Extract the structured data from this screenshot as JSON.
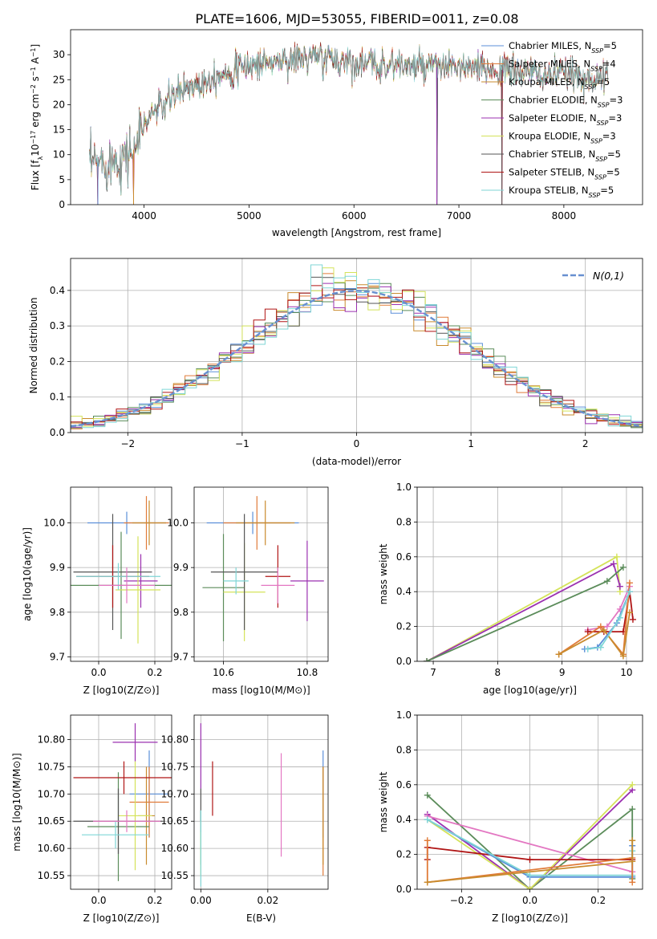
{
  "page": {
    "title": "PLATE=1606, MJD=53055, FIBERID=0011, z=0.08"
  },
  "colors": {
    "c1": "#5b8fd9",
    "c2": "#e07b39",
    "c3": "#c98b2e",
    "c4": "#5b8c5a",
    "c5": "#9b30b0",
    "c6": "#d4e35a",
    "c7": "#555555",
    "c8": "#b01515",
    "c9": "#7fd6d6",
    "c10": "#e377c2",
    "gauss": "#6890d0"
  },
  "chart_data": [
    {
      "id": "spectrum",
      "type": "line",
      "xlabel": "wavelength [Angstrom, rest frame]",
      "ylabel": "Flux [f_λ 10^-17 erg cm^-2 s^-1 A^-1]",
      "xlim": [
        3300,
        8750
      ],
      "ylim": [
        0,
        35
      ],
      "xticks": [
        4000,
        5000,
        6000,
        7000,
        8000
      ],
      "yticks": [
        0,
        5,
        10,
        15,
        20,
        25,
        30
      ],
      "legend_position": "upper-right",
      "legend": [
        {
          "label": "Chabrier MILES, N",
          "sub": "SSP",
          "suffix": "=5",
          "color": "#5b8fd9"
        },
        {
          "label": "Salpeter MILES, N",
          "sub": "SSP",
          "suffix": "=4",
          "color": "#e07b39"
        },
        {
          "label": "Kroupa MILES, N",
          "sub": "SSP",
          "suffix": "=5",
          "color": "#c98b2e"
        },
        {
          "label": "Chabrier ELODIE, N",
          "sub": "SSP",
          "suffix": "=3",
          "color": "#5b8c5a"
        },
        {
          "label": "Salpeter ELODIE, N",
          "sub": "SSP",
          "suffix": "=3",
          "color": "#9b30b0"
        },
        {
          "label": "Kroupa ELODIE, N",
          "sub": "SSP",
          "suffix": "=3",
          "color": "#d4e35a"
        },
        {
          "label": "Chabrier STELIB, N",
          "sub": "SSP",
          "suffix": "=5",
          "color": "#555555"
        },
        {
          "label": "Salpeter STELIB, N",
          "sub": "SSP",
          "suffix": "=5",
          "color": "#b01515"
        },
        {
          "label": "Kroupa STELIB, N",
          "sub": "SSP",
          "suffix": "=5",
          "color": "#7fd6d6"
        }
      ],
      "continuum": {
        "x": [
          3500,
          3600,
          3700,
          3800,
          3900,
          4000,
          4100,
          4200,
          4300,
          4400,
          4500,
          4600,
          4700,
          4800,
          4900,
          5000,
          5200,
          5400,
          5600,
          5800,
          6000,
          6200,
          6400,
          6600,
          6800,
          7000,
          7200,
          7400,
          7600,
          7800,
          8000,
          8200,
          8400
        ],
        "y": [
          8,
          8.5,
          9,
          9.5,
          11,
          16,
          19,
          20,
          22,
          23.5,
          24,
          25,
          26,
          26.5,
          27,
          28,
          28.5,
          29,
          29.5,
          29,
          28.5,
          28,
          28,
          27.5,
          27.5,
          27.5,
          27,
          27,
          26.5,
          26,
          26,
          25.5,
          25
        ]
      },
      "drops": [
        {
          "x": 3560,
          "to": 0
        },
        {
          "x": 3900,
          "to": 0
        },
        {
          "x": 6790,
          "to": 0
        },
        {
          "x": 7410,
          "to": 0
        }
      ]
    },
    {
      "id": "residuals",
      "type": "histogram",
      "xlabel": "(data-model)/error",
      "ylabel": "Normed distribution",
      "xlim": [
        -2.5,
        2.5
      ],
      "ylim": [
        0,
        0.49
      ],
      "xticks": [
        -2,
        -1,
        0,
        1,
        2
      ],
      "yticks": [
        0.0,
        0.1,
        0.2,
        0.3,
        0.4
      ],
      "legend_position": "upper-right",
      "legend_label": "N(0,1)",
      "bin_width": 0.1,
      "series_count": 9
    },
    {
      "id": "age_vs_Z",
      "type": "errorbar",
      "xlabel": "Z [log10(Z/Z⊙)]",
      "ylabel": "age [log10(age/yr)]",
      "xlim": [
        -0.1,
        0.26
      ],
      "ylim": [
        9.69,
        10.08
      ],
      "xticks": [
        0.0,
        0.2
      ],
      "yticks": [
        9.7,
        9.8,
        9.9,
        10.0
      ],
      "points": [
        {
          "x": 0.1,
          "y": 10.0,
          "xerr": 0.14,
          "yerr": 0.025,
          "color": "#5b8fd9"
        },
        {
          "x": 0.17,
          "y": 10.0,
          "xerr": 0.08,
          "yerr": 0.06,
          "color": "#e07b39"
        },
        {
          "x": 0.18,
          "y": 10.0,
          "xerr": 0.06,
          "yerr": 0.05,
          "color": "#c98b2e"
        },
        {
          "x": 0.08,
          "y": 9.86,
          "xerr": 0.19,
          "yerr": 0.12,
          "color": "#5b8c5a"
        },
        {
          "x": 0.15,
          "y": 9.87,
          "xerr": 0.06,
          "yerr": 0.06,
          "color": "#9b30b0"
        },
        {
          "x": 0.14,
          "y": 9.85,
          "xerr": 0.08,
          "yerr": 0.12,
          "color": "#d4e35a"
        },
        {
          "x": 0.05,
          "y": 9.89,
          "xerr": 0.14,
          "yerr": 0.13,
          "color": "#555555"
        },
        {
          "x": 0.05,
          "y": 9.88,
          "xerr": 0.13,
          "yerr": 0.07,
          "color": "#b01515"
        },
        {
          "x": 0.07,
          "y": 9.88,
          "xerr": 0.15,
          "yerr": 0.03,
          "color": "#7fd6d6"
        },
        {
          "x": 0.1,
          "y": 9.86,
          "xerr": 0.1,
          "yerr": 0.04,
          "color": "#e377c2"
        }
      ]
    },
    {
      "id": "age_vs_mass",
      "type": "errorbar",
      "xlabel": "mass [log10(M/M⊙)]",
      "ylabel": "",
      "xlim": [
        10.53,
        10.85
      ],
      "ylim": [
        9.69,
        10.08
      ],
      "xticks": [
        10.6,
        10.8
      ],
      "yticks": [
        9.7,
        9.8,
        9.9,
        10.0
      ],
      "points": [
        {
          "x": 10.67,
          "y": 10.0,
          "xerr": 0.11,
          "yerr": 0.025,
          "color": "#5b8fd9"
        },
        {
          "x": 10.68,
          "y": 10.0,
          "xerr": 0.08,
          "yerr": 0.06,
          "color": "#e07b39"
        },
        {
          "x": 10.7,
          "y": 10.0,
          "xerr": 0.07,
          "yerr": 0.05,
          "color": "#c98b2e"
        },
        {
          "x": 10.6,
          "y": 9.855,
          "xerr": 0.05,
          "yerr": 0.12,
          "color": "#5b8c5a"
        },
        {
          "x": 10.8,
          "y": 9.87,
          "xerr": 0.04,
          "yerr": 0.09,
          "color": "#9b30b0"
        },
        {
          "x": 10.65,
          "y": 9.845,
          "xerr": 0.05,
          "yerr": 0.11,
          "color": "#d4e35a"
        },
        {
          "x": 10.65,
          "y": 9.89,
          "xerr": 0.08,
          "yerr": 0.13,
          "color": "#555555"
        },
        {
          "x": 10.73,
          "y": 9.88,
          "xerr": 0.03,
          "yerr": 0.07,
          "color": "#b01515"
        },
        {
          "x": 10.63,
          "y": 9.87,
          "xerr": 0.03,
          "yerr": 0.03,
          "color": "#7fd6d6"
        },
        {
          "x": 10.73,
          "y": 9.86,
          "xerr": 0.04,
          "yerr": 0.04,
          "color": "#e377c2"
        }
      ]
    },
    {
      "id": "mass_weight_vs_age",
      "type": "line",
      "xlabel": "age [log10(age/yr)]",
      "ylabel": "mass weight",
      "xlim": [
        6.75,
        10.25
      ],
      "ylim": [
        0,
        1.0
      ],
      "xticks": [
        7,
        8,
        9,
        10
      ],
      "yticks": [
        0.0,
        0.2,
        0.4,
        0.6,
        0.8,
        1.0
      ],
      "series": [
        {
          "color": "#d4e35a",
          "x": [
            6.9,
            9.85,
            9.9
          ],
          "y": [
            0.0,
            0.6,
            0.4
          ]
        },
        {
          "color": "#9b30b0",
          "x": [
            6.9,
            9.8,
            9.9
          ],
          "y": [
            0.0,
            0.56,
            0.43
          ]
        },
        {
          "color": "#5b8c5a",
          "x": [
            6.9,
            9.7,
            9.95
          ],
          "y": [
            0.0,
            0.46,
            0.54
          ]
        },
        {
          "color": "#e377c2",
          "x": [
            9.4,
            9.7,
            9.9,
            10.05
          ],
          "y": [
            0.18,
            0.2,
            0.3,
            0.43
          ]
        },
        {
          "color": "#b01515",
          "x": [
            9.4,
            9.65,
            9.95,
            10.05,
            10.1
          ],
          "y": [
            0.17,
            0.17,
            0.17,
            0.4,
            0.24
          ]
        },
        {
          "color": "#e07b39",
          "x": [
            8.95,
            9.6,
            9.95,
            10.05
          ],
          "y": [
            0.04,
            0.2,
            0.04,
            0.45
          ]
        },
        {
          "color": "#c98b2e",
          "x": [
            8.95,
            9.65,
            9.95,
            10.05
          ],
          "y": [
            0.04,
            0.18,
            0.03,
            0.28
          ]
        },
        {
          "color": "#5b8fd9",
          "x": [
            9.35,
            9.55,
            9.85,
            10.05
          ],
          "y": [
            0.07,
            0.08,
            0.22,
            0.4
          ]
        },
        {
          "color": "#7fd6d6",
          "x": [
            9.4,
            9.6,
            9.9,
            10.05
          ],
          "y": [
            0.07,
            0.08,
            0.25,
            0.4
          ]
        }
      ]
    },
    {
      "id": "mass_vs_Z",
      "type": "errorbar",
      "xlabel": "Z [log10(Z/Z⊙)]",
      "ylabel": "mass [log10(M/M⊙)]",
      "xlim": [
        -0.1,
        0.26
      ],
      "ylim": [
        10.525,
        10.845
      ],
      "xticks": [
        0.0,
        0.2
      ],
      "yticks": [
        10.55,
        10.6,
        10.65,
        10.7,
        10.75,
        10.8
      ],
      "points": [
        {
          "x": 0.18,
          "y": 10.7,
          "xerr": 0.07,
          "yerr": 0.08,
          "color": "#5b8fd9"
        },
        {
          "x": 0.18,
          "y": 10.685,
          "xerr": 0.07,
          "yerr": 0.065,
          "color": "#e07b39"
        },
        {
          "x": 0.17,
          "y": 10.66,
          "xerr": 0.03,
          "yerr": 0.09,
          "color": "#c98b2e"
        },
        {
          "x": 0.07,
          "y": 10.64,
          "xerr": 0.11,
          "yerr": 0.1,
          "color": "#5b8c5a"
        },
        {
          "x": 0.13,
          "y": 10.795,
          "xerr": 0.08,
          "yerr": 0.035,
          "color": "#9b30b0"
        },
        {
          "x": 0.13,
          "y": 10.66,
          "xerr": 0.06,
          "yerr": 0.1,
          "color": "#d4e35a"
        },
        {
          "x": 0.07,
          "y": 10.65,
          "xerr": 0.16,
          "yerr": 0.06,
          "color": "#555555"
        },
        {
          "x": 0.09,
          "y": 10.73,
          "xerr": 0.18,
          "yerr": 0.03,
          "color": "#b01515"
        },
        {
          "x": 0.06,
          "y": 10.625,
          "xerr": 0.12,
          "yerr": 0.025,
          "color": "#7fd6d6"
        },
        {
          "x": 0.1,
          "y": 10.65,
          "xerr": 0.12,
          "yerr": 0.02,
          "color": "#e377c2"
        }
      ]
    },
    {
      "id": "mass_vs_ebv",
      "type": "errorbar",
      "xlabel": "E(B-V)",
      "ylabel": "",
      "xlim": [
        -0.002,
        0.038
      ],
      "ylim": [
        10.525,
        10.845
      ],
      "xticks": [
        0.0,
        0.02
      ],
      "yticks": [
        10.55,
        10.6,
        10.65,
        10.7,
        10.75,
        10.8
      ],
      "points": [
        {
          "x": 0.0365,
          "y": 10.7,
          "xerr": 0,
          "yerr": 0.08,
          "color": "#5b8fd9"
        },
        {
          "x": 0.0365,
          "y": 10.65,
          "xerr": 0,
          "yerr": 0.1,
          "color": "#e07b39"
        },
        {
          "x": 0.0365,
          "y": 10.66,
          "xerr": 0,
          "yerr": 0.09,
          "color": "#c98b2e"
        },
        {
          "x": 0.0,
          "y": 10.62,
          "xerr": 0,
          "yerr": 0.05,
          "color": "#5b8c5a"
        },
        {
          "x": 0.0,
          "y": 10.77,
          "xerr": 0,
          "yerr": 0.06,
          "color": "#9b30b0"
        },
        {
          "x": 0.0,
          "y": 10.59,
          "xerr": 0,
          "yerr": 0.04,
          "color": "#d4e35a"
        },
        {
          "x": 0.0,
          "y": 10.68,
          "xerr": 0,
          "yerr": 0.03,
          "color": "#555555"
        },
        {
          "x": 0.0035,
          "y": 10.71,
          "xerr": 0,
          "yerr": 0.05,
          "color": "#b01515"
        },
        {
          "x": 0.0,
          "y": 10.6,
          "xerr": 0,
          "yerr": 0.07,
          "color": "#7fd6d6"
        },
        {
          "x": 0.024,
          "y": 10.68,
          "xerr": 0,
          "yerr": 0.095,
          "color": "#e377c2"
        }
      ]
    },
    {
      "id": "mass_weight_vs_Z",
      "type": "line",
      "xlabel": "Z [log10(Z/Z⊙)]",
      "ylabel": "mass weight",
      "xlim": [
        -0.33,
        0.33
      ],
      "ylim": [
        0,
        1.0
      ],
      "xticks": [
        -0.2,
        0.0,
        0.2
      ],
      "yticks": [
        0.0,
        0.2,
        0.4,
        0.6,
        0.8,
        1.0
      ],
      "series": [
        {
          "color": "#5b8c5a",
          "x": [
            -0.3,
            0.0,
            0.3,
            0.3
          ],
          "y": [
            0.54,
            0.0,
            0.46,
            0.06
          ]
        },
        {
          "color": "#9b30b0",
          "x": [
            -0.3,
            0.0,
            0.3
          ],
          "y": [
            0.43,
            0.0,
            0.57
          ]
        },
        {
          "color": "#d4e35a",
          "x": [
            -0.3,
            0.0,
            0.3
          ],
          "y": [
            0.4,
            0.0,
            0.6
          ]
        },
        {
          "color": "#e377c2",
          "x": [
            -0.3,
            0.3
          ],
          "y": [
            0.42,
            0.1
          ]
        },
        {
          "color": "#b01515",
          "x": [
            -0.3,
            -0.3,
            0.0,
            0.3
          ],
          "y": [
            0.17,
            0.24,
            0.17,
            0.17
          ]
        },
        {
          "color": "#5b8fd9",
          "x": [
            -0.3,
            0.0,
            0.3,
            0.3
          ],
          "y": [
            0.4,
            0.07,
            0.07,
            0.25
          ]
        },
        {
          "color": "#7fd6d6",
          "x": [
            -0.3,
            0.0,
            0.3,
            0.3
          ],
          "y": [
            0.4,
            0.08,
            0.08,
            0.22
          ]
        },
        {
          "color": "#e07b39",
          "x": [
            -0.3,
            -0.3,
            0.3,
            0.3
          ],
          "y": [
            0.28,
            0.04,
            0.18,
            0.04
          ]
        },
        {
          "color": "#c98b2e",
          "x": [
            -0.3,
            0.3,
            0.3
          ],
          "y": [
            0.04,
            0.16,
            0.28
          ]
        }
      ]
    }
  ]
}
